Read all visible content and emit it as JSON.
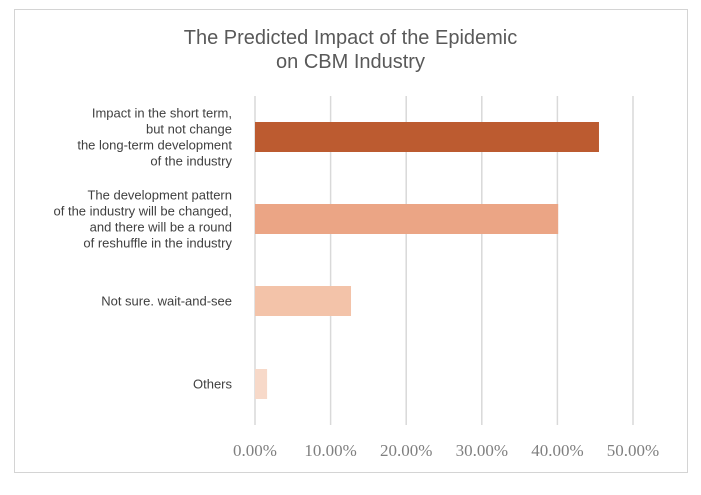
{
  "chart_data": {
    "type": "bar",
    "orientation": "horizontal",
    "title_lines": [
      "The Predicted Impact of the Epidemic",
      "on CBM Industry"
    ],
    "categories": [
      {
        "name": "impact-short-term",
        "lines": [
          "Impact in the short term,",
          "but not change",
          "the long-term development",
          "of the industry"
        ],
        "value": 45.5,
        "color": "#bc5b30"
      },
      {
        "name": "pattern-changed",
        "lines": [
          "The development pattern",
          "of the industry will be changed,",
          "and there will be a round",
          "of reshuffle in the industry"
        ],
        "value": 40.1,
        "color": "#eba585"
      },
      {
        "name": "not-sure",
        "lines": [
          "Not sure. wait-and-see"
        ],
        "value": 12.7,
        "color": "#f3c3a9"
      },
      {
        "name": "others",
        "lines": [
          "Others"
        ],
        "value": 1.6,
        "color": "#f7d9c9"
      }
    ],
    "xlim": [
      0,
      50
    ],
    "ticks": [
      0,
      10,
      20,
      30,
      40,
      50
    ],
    "tick_labels": [
      "0.00%",
      "10.00%",
      "20.00%",
      "30.00%",
      "40.00%",
      "50.00%"
    ],
    "grid": true,
    "gridline_color": "#d9d9d9",
    "xlabel": "",
    "ylabel": ""
  }
}
